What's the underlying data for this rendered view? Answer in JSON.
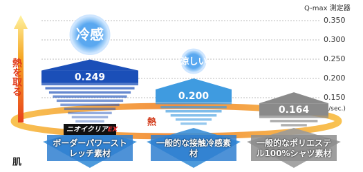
{
  "chart_data": {
    "type": "funnel",
    "y_axis_title": "Q-max 測定器",
    "y_unit": "(ℓ/㎠/sec.)",
    "side_label": "熱を取る",
    "heat_label": "熱",
    "skin_label": "肌",
    "brand": "ニオイクリア",
    "brand_suffix": "EX",
    "callouts": [
      "冷感",
      "涼しい"
    ],
    "categories": [
      "ボーダーパワーストレッチ素材",
      "一般的な接触冷感素材",
      "一般的なポリエステル100%シャツ素材"
    ],
    "values": [
      0.249,
      0.2,
      0.164
    ],
    "value_labels": [
      "0.249",
      "0.200",
      "0.164"
    ],
    "colors": [
      "#1b4fb8",
      "#3f9be0",
      "#8a8a8a"
    ],
    "ylim": [
      0.1,
      0.35
    ],
    "yticks": [
      {
        "value": 0.35,
        "label": "0.350"
      },
      {
        "value": 0.3,
        "label": "0.300"
      },
      {
        "value": 0.25,
        "label": "0.250"
      },
      {
        "value": 0.2,
        "label": "0.200"
      },
      {
        "value": 0.15,
        "label": "0.150"
      }
    ],
    "grid": true
  }
}
